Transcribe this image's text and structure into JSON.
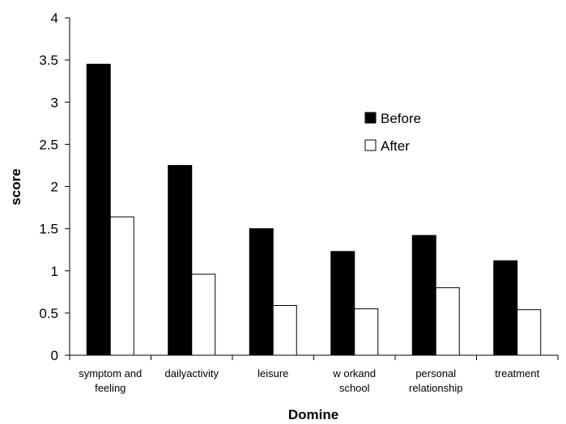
{
  "chart_data": {
    "type": "bar",
    "title": "",
    "xlabel": "Domine",
    "ylabel": "score",
    "ylim": [
      0,
      4
    ],
    "yticks": [
      "0",
      "0.5",
      "1",
      "1.5",
      "2",
      "2.5",
      "3",
      "3.5",
      "4"
    ],
    "categories": [
      [
        "symptom and",
        "feeling"
      ],
      [
        "dailyactivity"
      ],
      [
        "leisure"
      ],
      [
        "w orkand",
        "school"
      ],
      [
        "personal",
        "relationship"
      ],
      [
        "treatment"
      ]
    ],
    "series": [
      {
        "name": "Before",
        "color": "#000000",
        "values": [
          3.45,
          2.25,
          1.5,
          1.23,
          1.42,
          1.12
        ]
      },
      {
        "name": "After",
        "color": "#ffffff",
        "values": [
          1.64,
          0.96,
          0.59,
          0.55,
          0.8,
          0.54
        ]
      }
    ],
    "grid": false,
    "legend": "upper-right-inside"
  }
}
